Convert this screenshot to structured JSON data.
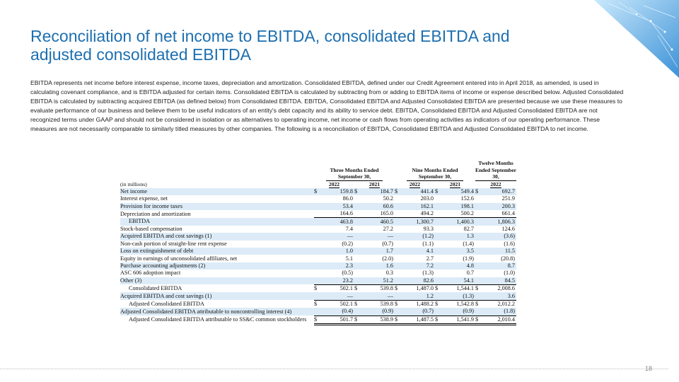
{
  "header": {
    "title": "Reconciliation of net income to EBITDA, consolidated EBITDA and adjusted consolidated EBITDA"
  },
  "intro": "EBITDA represents net income before interest expense, income taxes, depreciation and amortization.  Consolidated EBITDA, defined under our Credit Agreement entered into in April 2018, as amended, is used in calculating covenant compliance, and is EBITDA adjusted for certain items.  Consolidated EBITDA is calculated by subtracting from or adding to EBITDA items of income or expense described below.  Adjusted Consolidated EBITDA is calculated by subtracting acquired EBITDA (as defined below) from Consolidated EBITDA. EBITDA, Consolidated EBITDA and Adjusted Consolidated EBITDA are presented because we use these measures to evaluate performance of our business and believe them to be useful indicators of an entity's debt capacity and its ability to service debt.  EBITDA, Consolidated EBITDA and Adjusted Consolidated EBITDA are not recognized terms under GAAP and should not be considered in isolation or as alternatives to operating income, net income or cash flows from operating activities as indicators of our operating performance.  These measures are not necessarily comparable to similarly titled measures by other companies.  The following is a reconciliation of EBITDA, Consolidated EBITDA and Adjusted Consolidated EBITDA to net income.",
  "table": {
    "units": "(in millions)",
    "currency": "$",
    "periods": [
      "Three Months Ended September 30,",
      "Nine Months Ended September 30,",
      "Twelve Months Ended September 30,"
    ],
    "years": [
      "2022",
      "2021",
      "2022",
      "2021",
      "2022"
    ],
    "rows": [
      {
        "label": "Net income",
        "dollar": true,
        "values": [
          "159.8",
          "184.7",
          "441.4",
          "549.4",
          "692.7"
        ]
      },
      {
        "label": "Interest expense, net",
        "values": [
          "86.0",
          "50.2",
          "203.0",
          "152.6",
          "251.9"
        ]
      },
      {
        "label": "Provision for income taxes",
        "values": [
          "53.4",
          "60.6",
          "162.1",
          "198.1",
          "200.3"
        ]
      },
      {
        "label": "Depreciation and amortization",
        "values": [
          "164.6",
          "165.0",
          "494.2",
          "500.2",
          "661.4"
        ]
      },
      {
        "label": "EBITDA",
        "values": [
          "463.8",
          "460.5",
          "1,300.7",
          "1,400.3",
          "1,806.3"
        ]
      },
      {
        "label": "Stock-based compensation",
        "values": [
          "7.4",
          "27.2",
          "93.3",
          "82.7",
          "124.6"
        ]
      },
      {
        "label": "Acquired EBITDA and cost savings (1)",
        "values": [
          "—",
          "—",
          "(1.2)",
          "1.3",
          "(3.6)"
        ]
      },
      {
        "label": "Non-cash portion of straight-line rent expense",
        "values": [
          "(0.2)",
          "(0.7)",
          "(1.1)",
          "(1.4)",
          "(1.6)"
        ]
      },
      {
        "label": "Loss on extinguishment of debt",
        "values": [
          "1.0",
          "1.7",
          "4.1",
          "3.5",
          "11.5"
        ]
      },
      {
        "label": "Equity in earnings of unconsolidated affiliates, net",
        "values": [
          "5.1",
          "(2.0)",
          "2.7",
          "(1.9)",
          "(20.8)"
        ]
      },
      {
        "label": "Purchase accounting adjustments (2)",
        "values": [
          "2.3",
          "1.6",
          "7.2",
          "4.8",
          "8.7"
        ]
      },
      {
        "label": "ASC 606 adoption impact",
        "values": [
          "(0.5)",
          "0.3",
          "(1.3)",
          "0.7",
          "(1.0)"
        ]
      },
      {
        "label": "Other (3)",
        "values": [
          "23.2",
          "51.2",
          "82.6",
          "54.1",
          "84.5"
        ]
      },
      {
        "label": "Consolidated EBITDA",
        "dollar": true,
        "values": [
          "502.1",
          "539.8",
          "1,487.0",
          "1,544.1",
          "2,008.6"
        ]
      },
      {
        "label": "Acquired EBITDA and cost savings (1)",
        "values": [
          "—",
          "—",
          "1.2",
          "(1.3)",
          "3.6"
        ]
      },
      {
        "label": "Adjusted Consolidated EBITDA",
        "dollar": true,
        "values": [
          "502.1",
          "539.8",
          "1,488.2",
          "1,542.8",
          "2,012.2"
        ]
      },
      {
        "label": "Adjusted Consolidated EBITDA attributable to noncontrolling interest (4)",
        "values": [
          "(0.4)",
          "(0.9)",
          "(0.7)",
          "(0.9)",
          "(1.8)"
        ]
      },
      {
        "label": "Adjusted Consolidated EBITDA attributable to SS&C common stockholders",
        "dollar": true,
        "values": [
          "501.7",
          "538.9",
          "1,487.5",
          "1,541.9",
          "2,010.4"
        ]
      }
    ]
  },
  "footer": {
    "page": "18"
  }
}
